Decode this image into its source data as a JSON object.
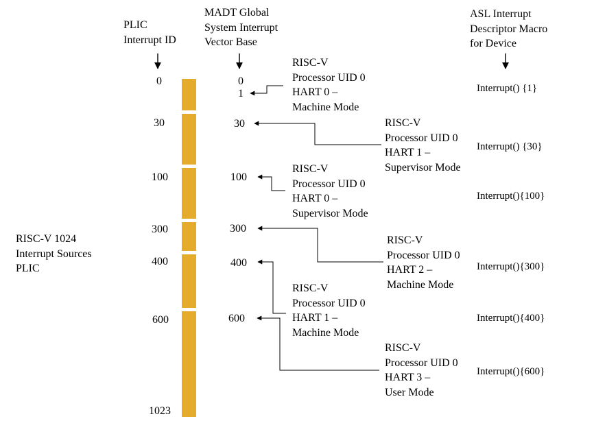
{
  "headers": {
    "plic": "PLIC\nInterrupt ID",
    "madt": "MADT Global\nSystem Interrupt\nVector Base",
    "asl": "ASL Interrupt\nDescriptor Macro\nfor Device"
  },
  "plic_label": "RISC-V 1024\nInterrupt Sources\nPLIC",
  "plic_ids": [
    "0",
    "30",
    "100",
    "300",
    "400",
    "600",
    "1023"
  ],
  "madt_ids": [
    "0",
    "1",
    "30",
    "100",
    "300",
    "400",
    "600"
  ],
  "contexts": [
    "RISC-V\nProcessor UID 0\nHART 0 –\nMachine Mode",
    "RISC-V\nProcessor UID 0\nHART 1 –\nSupervisor Mode",
    "RISC-V\nProcessor UID 0\nHART 0 –\nSupervisor Mode",
    "RISC-V\nProcessor UID 0\nHART 2 –\nMachine Mode",
    "RISC-V\nProcessor UID 0\nHART 1 –\nMachine Mode",
    "RISC-V\nProcessor UID 0\nHART 3 –\nUser Mode"
  ],
  "asl_macros": [
    "Interrupt() {1}",
    "Interrupt() {30}",
    "Interrupt(){100}",
    "Interrupt(){300}",
    "Interrupt(){400}",
    "Interrupt(){600}"
  ],
  "colors": {
    "plic_bar": "#e5ab2c",
    "lines": "#000000"
  }
}
